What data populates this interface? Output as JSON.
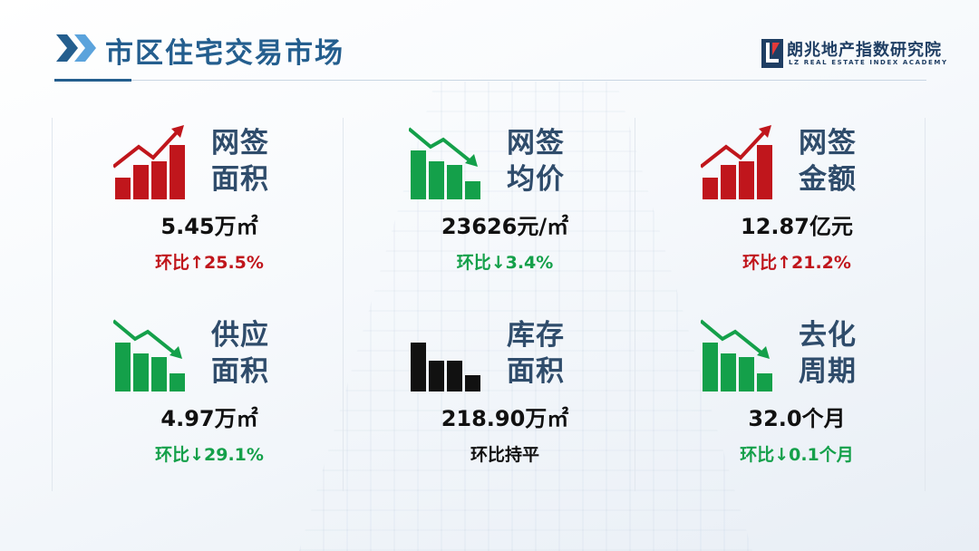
{
  "header": {
    "title": "市区住宅交易市场",
    "logo_cn": "朗兆地产指数研究院",
    "logo_en": "LZ REAL ESTATE INDEX ACADEMY",
    "accent_color": "#245e8e"
  },
  "metrics": [
    {
      "label_line1": "网签",
      "label_line2": "面积",
      "value": "5.45万㎡",
      "change": "环比↑25.5%",
      "trend": "up",
      "icon": "rising-bar-chart-icon",
      "color": "#c0161c"
    },
    {
      "label_line1": "网签",
      "label_line2": "均价",
      "value": "23626元/㎡",
      "change": "环比↓3.4%",
      "trend": "down",
      "icon": "falling-bar-chart-icon",
      "color": "#14a04a"
    },
    {
      "label_line1": "网签",
      "label_line2": "金额",
      "value": "12.87亿元",
      "change": "环比↑21.2%",
      "trend": "up",
      "icon": "rising-bar-chart-icon",
      "color": "#c0161c"
    },
    {
      "label_line1": "供应",
      "label_line2": "面积",
      "value": "4.97万㎡",
      "change": "环比↓29.1%",
      "trend": "down",
      "icon": "falling-bar-chart-icon",
      "color": "#14a04a"
    },
    {
      "label_line1": "库存",
      "label_line2": "面积",
      "value": "218.90万㎡",
      "change": "环比持平",
      "trend": "flat",
      "icon": "flat-bar-chart-icon",
      "color": "#111111"
    },
    {
      "label_line1": "去化",
      "label_line2": "周期",
      "value": "32.0个月",
      "change": "环比↓0.1个月",
      "trend": "down",
      "icon": "falling-bar-chart-icon",
      "color": "#14a04a"
    }
  ]
}
